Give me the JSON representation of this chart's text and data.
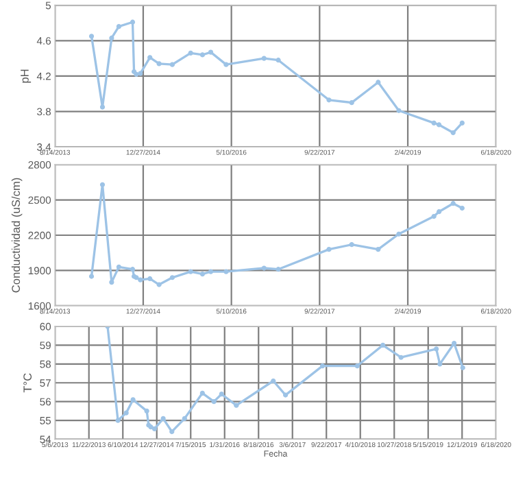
{
  "chart_data": [
    {
      "type": "line",
      "ylabel": "pH",
      "x": [
        "2014-03-09",
        "2014-05-10",
        "2014-07-01",
        "2014-08-11",
        "2014-10-28",
        "2014-11-05",
        "2014-11-18",
        "2014-12-11",
        "2015-02-03",
        "2015-03-27",
        "2015-06-10",
        "2015-09-22",
        "2015-11-28",
        "2016-01-14",
        "2016-04-10",
        "2016-11-11",
        "2017-01-31",
        "2017-11-14",
        "2018-03-23",
        "2018-08-20",
        "2018-12-15",
        "2019-07-02",
        "2019-07-31",
        "2019-10-19",
        "2019-12-09"
      ],
      "series": [
        {
          "color": "#9dc3e6",
          "values": [
            4.65,
            3.85,
            4.63,
            4.76,
            4.81,
            4.25,
            4.22,
            4.23,
            4.41,
            4.34,
            4.33,
            4.46,
            4.44,
            4.47,
            4.33,
            4.4,
            4.38,
            3.93,
            3.9,
            4.13,
            3.81,
            3.67,
            3.65,
            3.56,
            3.67
          ]
        }
      ],
      "xlim": [
        "2013-08-14",
        "2020-06-18"
      ],
      "xticks": [
        {
          "value": "2013-08-14",
          "label": "8/14/2013"
        },
        {
          "value": "2014-12-27",
          "label": "12/27/2014"
        },
        {
          "value": "2016-05-10",
          "label": "5/10/2016"
        },
        {
          "value": "2017-09-22",
          "label": "9/22/2017"
        },
        {
          "value": "2019-02-04",
          "label": "2/4/2019"
        },
        {
          "value": "2020-06-18",
          "label": "6/18/2020"
        }
      ],
      "ylim": [
        3.4,
        5
      ],
      "yticks": [
        3.4,
        3.8,
        4.2,
        4.6,
        5
      ],
      "grid": true,
      "marker": "circle",
      "line_style": "solid"
    },
    {
      "type": "line",
      "ylabel": "Conductividad (uS/cm)",
      "x": [
        "2014-03-09",
        "2014-05-10",
        "2014-07-01",
        "2014-08-11",
        "2014-10-28",
        "2014-11-05",
        "2014-11-18",
        "2014-12-11",
        "2015-02-03",
        "2015-03-27",
        "2015-06-10",
        "2015-09-22",
        "2015-11-28",
        "2016-01-14",
        "2016-04-10",
        "2016-11-11",
        "2017-01-31",
        "2017-11-14",
        "2018-03-23",
        "2018-08-20",
        "2018-12-15",
        "2019-07-02",
        "2019-07-31",
        "2019-10-19",
        "2019-12-09"
      ],
      "series": [
        {
          "color": "#9dc3e6",
          "values": [
            1850,
            2630,
            1800,
            1930,
            1910,
            1850,
            1840,
            1820,
            1830,
            1780,
            1840,
            1890,
            1870,
            1890,
            1890,
            1920,
            1910,
            2080,
            2120,
            2080,
            2210,
            2360,
            2400,
            2470,
            2430
          ]
        }
      ],
      "xlim": [
        "2013-08-14",
        "2020-06-18"
      ],
      "xticks": [
        {
          "value": "2013-08-14",
          "label": "8/14/2013"
        },
        {
          "value": "2014-12-27",
          "label": "12/27/2014"
        },
        {
          "value": "2016-05-10",
          "label": "5/10/2016"
        },
        {
          "value": "2017-09-22",
          "label": "9/22/2017"
        },
        {
          "value": "2019-02-04",
          "label": "2/4/2019"
        },
        {
          "value": "2020-06-18",
          "label": "6/18/2020"
        }
      ],
      "ylim": [
        1600,
        2800
      ],
      "yticks": [
        1600,
        1900,
        2200,
        2500,
        2800
      ],
      "grid": true,
      "marker": "circle",
      "line_style": "solid"
    },
    {
      "type": "line",
      "ylabel": "T°C",
      "xlabel": "Fecha",
      "x": [
        "2014-03-12",
        "2014-05-12",
        "2014-06-30",
        "2014-08-09",
        "2014-10-29",
        "2014-11-09",
        "2014-11-22",
        "2014-12-14",
        "2015-02-03",
        "2015-03-26",
        "2015-06-09",
        "2015-09-22",
        "2015-11-29",
        "2016-01-13",
        "2016-04-09",
        "2016-11-13",
        "2017-01-24",
        "2017-08-30",
        "2018-03-23",
        "2018-08-21",
        "2018-12-06",
        "2019-07-02",
        "2019-07-23",
        "2019-10-15",
        "2019-12-05"
      ],
      "series": [
        {
          "color": "#9dc3e6",
          "values": [
            60,
            55,
            55.4,
            56.1,
            55.5,
            54.75,
            54.65,
            54.55,
            55.1,
            54.4,
            55.1,
            56.45,
            56,
            56.4,
            55.8,
            57.1,
            56.35,
            57.9,
            57.9,
            59,
            58.35,
            58.8,
            58,
            59.1,
            57.8
          ]
        }
      ],
      "xlim": [
        "2013-05-06",
        "2020-06-18"
      ],
      "xticks": [
        {
          "value": "2013-05-06",
          "label": "5/6/2013"
        },
        {
          "value": "2013-11-22",
          "label": "11/22/2013"
        },
        {
          "value": "2014-06-10",
          "label": "6/10/2014"
        },
        {
          "value": "2014-12-27",
          "label": "12/27/2014"
        },
        {
          "value": "2015-07-15",
          "label": "7/15/2015"
        },
        {
          "value": "2016-01-31",
          "label": "1/31/2016"
        },
        {
          "value": "2016-08-18",
          "label": "8/18/2016"
        },
        {
          "value": "2017-03-06",
          "label": "3/6/2017"
        },
        {
          "value": "2017-09-22",
          "label": "9/22/2017"
        },
        {
          "value": "2018-04-10",
          "label": "4/10/2018"
        },
        {
          "value": "2018-10-27",
          "label": "10/27/2018"
        },
        {
          "value": "2019-05-15",
          "label": "5/15/2019"
        },
        {
          "value": "2019-12-01",
          "label": "12/1/2019"
        },
        {
          "value": "2020-06-18",
          "label": "6/18/2020"
        }
      ],
      "ylim": [
        54,
        60
      ],
      "yticks": [
        54,
        55,
        56,
        57,
        58,
        59,
        60
      ],
      "grid": true,
      "marker": "circle",
      "line_style": "solid"
    }
  ]
}
